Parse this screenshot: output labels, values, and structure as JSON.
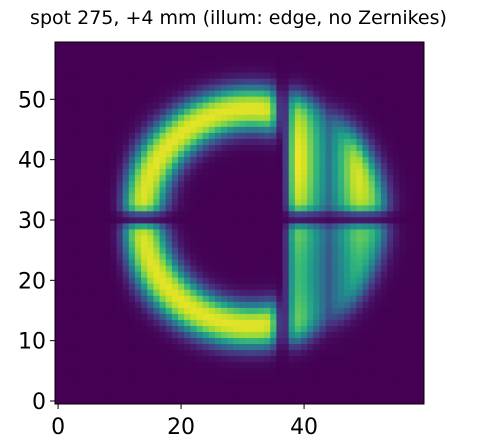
{
  "chart_data": {
    "type": "heatmap",
    "title": "spot 275, +4 mm (illum: edge, no Zernikes)",
    "xlabel": "",
    "ylabel": "",
    "grid": false,
    "colormap": "viridis",
    "background_color": "#440154",
    "colors": {
      "viridis": [
        "#440154",
        "#482878",
        "#3e4989",
        "#31688e",
        "#26828e",
        "#1f9e89",
        "#35b779",
        "#6ece58",
        "#b5de2b",
        "#fde725"
      ]
    },
    "nx": 60,
    "ny": 60,
    "xlim": [
      -0.5,
      59.5
    ],
    "ylim": [
      -0.5,
      59.5
    ],
    "x_ticks": [
      0,
      20,
      40
    ],
    "y_ticks": [
      0,
      10,
      20,
      30,
      40,
      50
    ],
    "x_tick_labels": [
      "0",
      "20",
      "40"
    ],
    "y_tick_labels": [
      "0",
      "10",
      "20",
      "30",
      "40",
      "50"
    ],
    "spot": {
      "center_x": 31.5,
      "center_y": 30.5,
      "outer_radius": 21.5,
      "inner_radius": 14.5,
      "vertical_gap_x": 36.5,
      "horizontal_gap_y": 30.3,
      "right_lobe_dark_x": 44
    }
  }
}
